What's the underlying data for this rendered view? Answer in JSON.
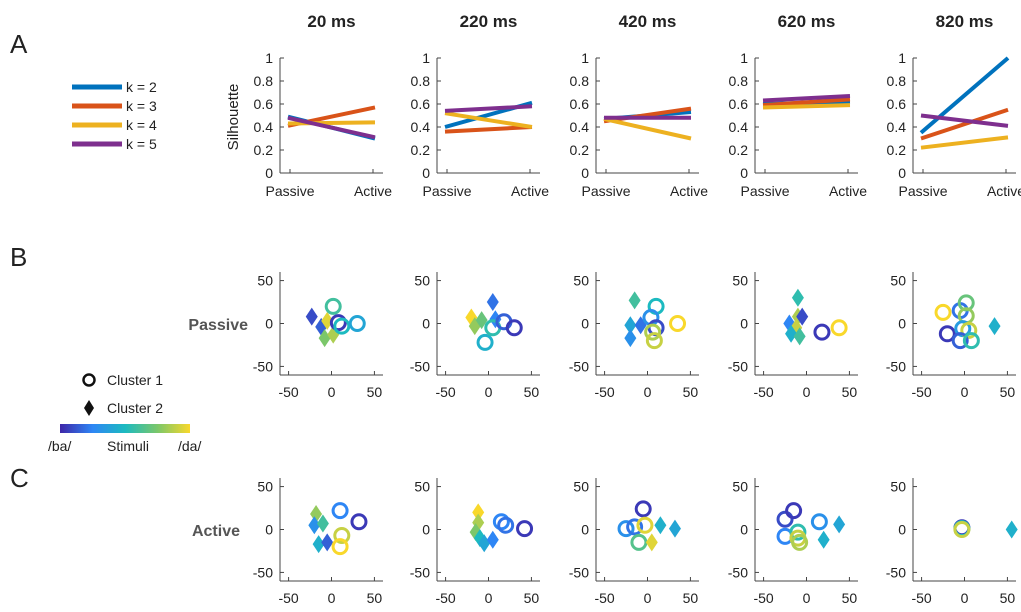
{
  "panel_labels": [
    "A",
    "B",
    "C"
  ],
  "time_labels": [
    "20 ms",
    "220 ms",
    "420 ms",
    "620 ms",
    "820 ms"
  ],
  "legend_k": [
    {
      "label": "k = 2",
      "color": "#0072BD"
    },
    {
      "label": "k = 3",
      "color": "#D95319"
    },
    {
      "label": "k = 4",
      "color": "#EDB120"
    },
    {
      "label": "k = 5",
      "color": "#7E2F8E"
    }
  ],
  "cluster_legend": {
    "cluster1": "Cluster 1",
    "cluster2": "Cluster 2"
  },
  "colorbar": {
    "left": "/ba/",
    "middle": "Stimuli",
    "right": "/da/",
    "colors": [
      "#3E26A8",
      "#2E86F5",
      "#1CBAC0",
      "#7BC76A",
      "#F9D82B"
    ]
  },
  "row_labels": {
    "passive": "Passive",
    "active": "Active"
  },
  "chart_data": [
    {
      "type": "line",
      "ylabel": "Silhouette",
      "xlabel": "",
      "categories": [
        "Passive",
        "Active"
      ],
      "ylim": [
        0,
        1
      ],
      "yticks": [
        "0",
        "0.2",
        "0.4",
        "0.6",
        "0.8",
        "1"
      ],
      "panels": [
        {
          "title": "20 ms",
          "series": [
            {
              "name": "k = 2",
              "values": [
                0.49,
                0.3
              ]
            },
            {
              "name": "k = 3",
              "values": [
                0.41,
                0.57
              ]
            },
            {
              "name": "k = 4",
              "values": [
                0.43,
                0.44
              ]
            },
            {
              "name": "k = 5",
              "values": [
                0.48,
                0.31
              ]
            }
          ]
        },
        {
          "title": "220 ms",
          "series": [
            {
              "name": "k = 2",
              "values": [
                0.4,
                0.61
              ]
            },
            {
              "name": "k = 3",
              "values": [
                0.36,
                0.4
              ]
            },
            {
              "name": "k = 4",
              "values": [
                0.52,
                0.4
              ]
            },
            {
              "name": "k = 5",
              "values": [
                0.54,
                0.58
              ]
            }
          ]
        },
        {
          "title": "420 ms",
          "series": [
            {
              "name": "k = 2",
              "values": [
                0.47,
                0.53
              ]
            },
            {
              "name": "k = 3",
              "values": [
                0.45,
                0.56
              ]
            },
            {
              "name": "k = 4",
              "values": [
                0.47,
                0.3
              ]
            },
            {
              "name": "k = 5",
              "values": [
                0.48,
                0.48
              ]
            }
          ]
        },
        {
          "title": "620 ms",
          "series": [
            {
              "name": "k = 2",
              "values": [
                0.6,
                0.62
              ]
            },
            {
              "name": "k = 3",
              "values": [
                0.59,
                0.64
              ]
            },
            {
              "name": "k = 4",
              "values": [
                0.57,
                0.59
              ]
            },
            {
              "name": "k = 5",
              "values": [
                0.63,
                0.67
              ]
            }
          ]
        },
        {
          "title": "820 ms",
          "series": [
            {
              "name": "k = 2",
              "values": [
                0.35,
                1.0
              ]
            },
            {
              "name": "k = 3",
              "values": [
                0.3,
                0.55
              ]
            },
            {
              "name": "k = 4",
              "values": [
                0.22,
                0.31
              ]
            },
            {
              "name": "k = 5",
              "values": [
                0.5,
                0.41
              ]
            }
          ]
        }
      ]
    },
    {
      "type": "scatter",
      "row": "Passive",
      "xlim": [
        -60,
        60
      ],
      "ylim": [
        -60,
        60
      ],
      "xticks": [
        "-50",
        "0",
        "50"
      ],
      "yticks": [
        "-50",
        "0",
        "50"
      ],
      "panels": [
        {
          "title": "20 ms",
          "points": [
            {
              "x": -23,
              "y": 8,
              "cluster": 2,
              "stim": 0.1
            },
            {
              "x": -12,
              "y": -4,
              "cluster": 2,
              "stim": 0.15
            },
            {
              "x": -5,
              "y": 3,
              "cluster": 2,
              "stim": 0.95
            },
            {
              "x": -8,
              "y": -17,
              "cluster": 2,
              "stim": 0.75
            },
            {
              "x": 2,
              "y": -13,
              "cluster": 2,
              "stim": 0.85
            },
            {
              "x": 2,
              "y": 20,
              "cluster": 1,
              "stim": 0.6
            },
            {
              "x": 8,
              "y": 1,
              "cluster": 1,
              "stim": 0.05
            },
            {
              "x": 12,
              "y": -3,
              "cluster": 1,
              "stim": 0.5
            },
            {
              "x": 30,
              "y": 0,
              "cluster": 1,
              "stim": 0.4
            }
          ]
        },
        {
          "title": "220 ms",
          "points": [
            {
              "x": -20,
              "y": 7,
              "cluster": 2,
              "stim": 1.0
            },
            {
              "x": -16,
              "y": -3,
              "cluster": 2,
              "stim": 0.8
            },
            {
              "x": -8,
              "y": 4,
              "cluster": 2,
              "stim": 0.7
            },
            {
              "x": 5,
              "y": 25,
              "cluster": 2,
              "stim": 0.2
            },
            {
              "x": 8,
              "y": 5,
              "cluster": 2,
              "stim": 0.25
            },
            {
              "x": -4,
              "y": -22,
              "cluster": 1,
              "stim": 0.45
            },
            {
              "x": 5,
              "y": -5,
              "cluster": 1,
              "stim": 0.55
            },
            {
              "x": 18,
              "y": 2,
              "cluster": 1,
              "stim": 0.15
            },
            {
              "x": 30,
              "y": -5,
              "cluster": 1,
              "stim": 0.05
            }
          ]
        },
        {
          "title": "420 ms",
          "points": [
            {
              "x": -15,
              "y": 27,
              "cluster": 2,
              "stim": 0.6
            },
            {
              "x": -20,
              "y": -2,
              "cluster": 2,
              "stim": 0.4
            },
            {
              "x": -20,
              "y": -17,
              "cluster": 2,
              "stim": 0.3
            },
            {
              "x": -8,
              "y": -2,
              "cluster": 2,
              "stim": 0.2
            },
            {
              "x": 10,
              "y": 20,
              "cluster": 1,
              "stim": 0.5
            },
            {
              "x": 4,
              "y": 7,
              "cluster": 1,
              "stim": 0.3
            },
            {
              "x": 10,
              "y": -5,
              "cluster": 1,
              "stim": 0.1
            },
            {
              "x": 6,
              "y": -10,
              "cluster": 1,
              "stim": 0.85
            },
            {
              "x": 8,
              "y": -20,
              "cluster": 1,
              "stim": 0.9
            },
            {
              "x": 35,
              "y": 0,
              "cluster": 1,
              "stim": 1.0
            }
          ]
        },
        {
          "title": "620 ms",
          "points": [
            {
              "x": -10,
              "y": 30,
              "cluster": 2,
              "stim": 0.55
            },
            {
              "x": -10,
              "y": 8,
              "cluster": 2,
              "stim": 0.85
            },
            {
              "x": -20,
              "y": 0,
              "cluster": 2,
              "stim": 0.25
            },
            {
              "x": -12,
              "y": -5,
              "cluster": 2,
              "stim": 0.9
            },
            {
              "x": -18,
              "y": -12,
              "cluster": 2,
              "stim": 0.45
            },
            {
              "x": -8,
              "y": -15,
              "cluster": 2,
              "stim": 0.6
            },
            {
              "x": -5,
              "y": 8,
              "cluster": 2,
              "stim": 0.1
            },
            {
              "x": 18,
              "y": -10,
              "cluster": 1,
              "stim": 0.05
            },
            {
              "x": 38,
              "y": -5,
              "cluster": 1,
              "stim": 1.0
            }
          ]
        },
        {
          "title": "820 ms",
          "points": [
            {
              "x": -25,
              "y": 13,
              "cluster": 1,
              "stim": 1.0
            },
            {
              "x": -20,
              "y": -12,
              "cluster": 1,
              "stim": 0.05
            },
            {
              "x": -5,
              "y": 15,
              "cluster": 1,
              "stim": 0.2
            },
            {
              "x": 2,
              "y": 24,
              "cluster": 1,
              "stim": 0.7
            },
            {
              "x": 2,
              "y": 9,
              "cluster": 1,
              "stim": 0.8
            },
            {
              "x": -2,
              "y": -6,
              "cluster": 1,
              "stim": 0.35
            },
            {
              "x": 5,
              "y": -8,
              "cluster": 1,
              "stim": 0.9
            },
            {
              "x": -5,
              "y": -20,
              "cluster": 1,
              "stim": 0.15
            },
            {
              "x": 8,
              "y": -20,
              "cluster": 1,
              "stim": 0.55
            },
            {
              "x": 35,
              "y": -3,
              "cluster": 2,
              "stim": 0.45
            }
          ]
        }
      ]
    },
    {
      "type": "scatter",
      "row": "Active",
      "xlim": [
        -60,
        60
      ],
      "ylim": [
        -60,
        60
      ],
      "xticks": [
        "-50",
        "0",
        "50"
      ],
      "yticks": [
        "-50",
        "0",
        "50"
      ],
      "panels": [
        {
          "title": "20 ms",
          "points": [
            {
              "x": -18,
              "y": 18,
              "cluster": 2,
              "stim": 0.8
            },
            {
              "x": -20,
              "y": 5,
              "cluster": 2,
              "stim": 0.3
            },
            {
              "x": -10,
              "y": 7,
              "cluster": 2,
              "stim": 0.6
            },
            {
              "x": -15,
              "y": -17,
              "cluster": 2,
              "stim": 0.45
            },
            {
              "x": -5,
              "y": -15,
              "cluster": 2,
              "stim": 0.15
            },
            {
              "x": 10,
              "y": 22,
              "cluster": 1,
              "stim": 0.25
            },
            {
              "x": 32,
              "y": 9,
              "cluster": 1,
              "stim": 0.05
            },
            {
              "x": 12,
              "y": -7,
              "cluster": 1,
              "stim": 0.9
            },
            {
              "x": 10,
              "y": -20,
              "cluster": 1,
              "stim": 1.0
            }
          ]
        },
        {
          "title": "220 ms",
          "points": [
            {
              "x": -12,
              "y": 20,
              "cluster": 2,
              "stim": 1.0
            },
            {
              "x": -12,
              "y": 8,
              "cluster": 2,
              "stim": 0.85
            },
            {
              "x": -15,
              "y": -3,
              "cluster": 2,
              "stim": 0.75
            },
            {
              "x": -10,
              "y": -10,
              "cluster": 2,
              "stim": 0.5
            },
            {
              "x": -5,
              "y": -16,
              "cluster": 2,
              "stim": 0.4
            },
            {
              "x": 5,
              "y": -12,
              "cluster": 2,
              "stim": 0.25
            },
            {
              "x": 15,
              "y": 9,
              "cluster": 1,
              "stim": 0.25
            },
            {
              "x": 20,
              "y": 5,
              "cluster": 1,
              "stim": 0.2
            },
            {
              "x": 42,
              "y": 1,
              "cluster": 1,
              "stim": 0.05
            }
          ]
        },
        {
          "title": "420 ms",
          "points": [
            {
              "x": -5,
              "y": 24,
              "cluster": 1,
              "stim": 0.05
            },
            {
              "x": -25,
              "y": 1,
              "cluster": 1,
              "stim": 0.3
            },
            {
              "x": -15,
              "y": 3,
              "cluster": 1,
              "stim": 0.2
            },
            {
              "x": -3,
              "y": 5,
              "cluster": 1,
              "stim": 0.95
            },
            {
              "x": -10,
              "y": -15,
              "cluster": 1,
              "stim": 0.65
            },
            {
              "x": 5,
              "y": -15,
              "cluster": 2,
              "stim": 0.95
            },
            {
              "x": 15,
              "y": 5,
              "cluster": 2,
              "stim": 0.45
            },
            {
              "x": 32,
              "y": 1,
              "cluster": 2,
              "stim": 0.4
            }
          ]
        },
        {
          "title": "620 ms",
          "points": [
            {
              "x": -25,
              "y": 12,
              "cluster": 1,
              "stim": 0.1
            },
            {
              "x": -15,
              "y": 22,
              "cluster": 1,
              "stim": 0.05
            },
            {
              "x": -25,
              "y": -8,
              "cluster": 1,
              "stim": 0.25
            },
            {
              "x": -10,
              "y": -3,
              "cluster": 1,
              "stim": 0.55
            },
            {
              "x": -10,
              "y": -10,
              "cluster": 1,
              "stim": 0.9
            },
            {
              "x": -8,
              "y": -15,
              "cluster": 1,
              "stim": 0.85
            },
            {
              "x": 15,
              "y": 9,
              "cluster": 1,
              "stim": 0.3
            },
            {
              "x": 20,
              "y": -12,
              "cluster": 2,
              "stim": 0.45
            },
            {
              "x": 38,
              "y": 6,
              "cluster": 2,
              "stim": 0.4
            }
          ]
        },
        {
          "title": "820 ms",
          "points": [
            {
              "x": -3,
              "y": 2,
              "cluster": 1,
              "stim": 0.05
            },
            {
              "x": -3,
              "y": 1,
              "cluster": 1,
              "stim": 0.5
            },
            {
              "x": -3,
              "y": 0,
              "cluster": 1,
              "stim": 0.9
            },
            {
              "x": 55,
              "y": 0,
              "cluster": 2,
              "stim": 0.45
            }
          ]
        }
      ]
    }
  ]
}
